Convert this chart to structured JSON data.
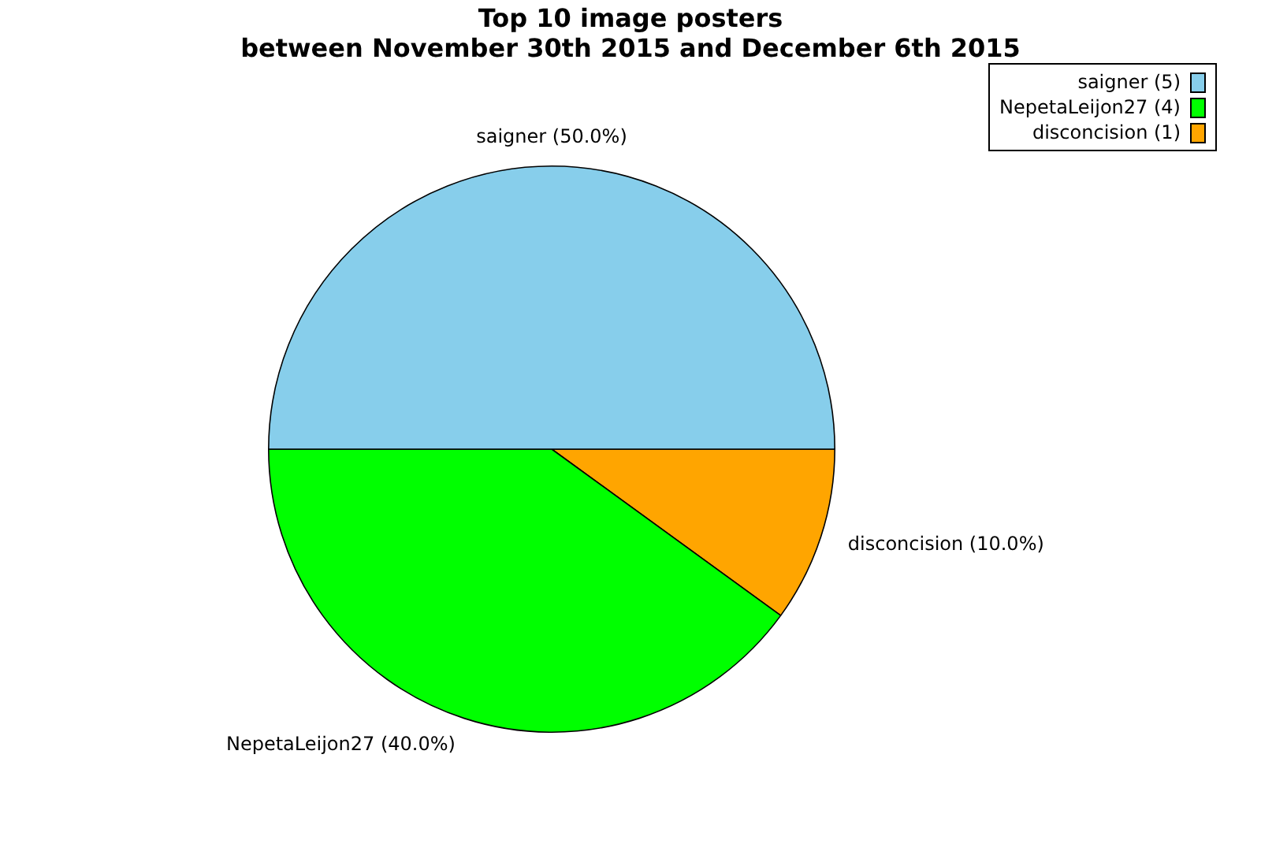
{
  "chart_data": {
    "type": "pie",
    "title": "Top 10 image posters\nbetween November 30th 2015 and December 6th 2015",
    "categories": [
      "saigner (5)",
      "NepetaLeijon27 (4)",
      "disconcision (1)"
    ],
    "values": [
      50,
      40,
      10
    ],
    "value_labels": [
      "saigner (50.0%)",
      "NepetaLeijon27 (40.0%)",
      "disconcision (10.0%)"
    ],
    "colors": [
      "#87ceeb",
      "#00ff00",
      "#ffa500"
    ],
    "legend": "top right"
  }
}
